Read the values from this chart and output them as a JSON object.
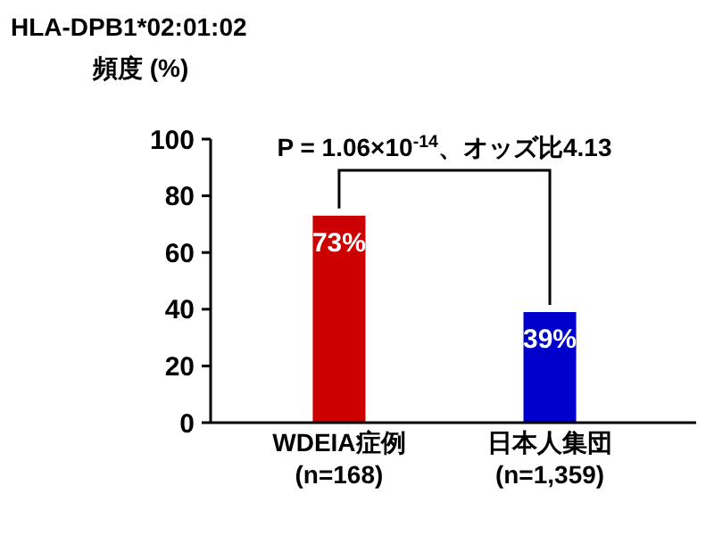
{
  "chart_data": {
    "type": "bar",
    "title": "HLA-DPB1*02:01:02",
    "ylabel": "頻度 (%)",
    "categories": [
      "WDEIA症例\n(n=168)",
      "日本人集団\n(n=1,359)"
    ],
    "values": [
      73,
      39
    ],
    "colors": [
      "#cc0000",
      "#0000cc"
    ],
    "ylim": [
      0,
      100
    ],
    "yticks": [
      0,
      20,
      40,
      60,
      80,
      100
    ],
    "data_labels": true,
    "value_labels": [
      "73%",
      "39%"
    ],
    "annotations": [
      "P = 1.06×10$^{-14}$、オッズ比4.13"
    ]
  }
}
